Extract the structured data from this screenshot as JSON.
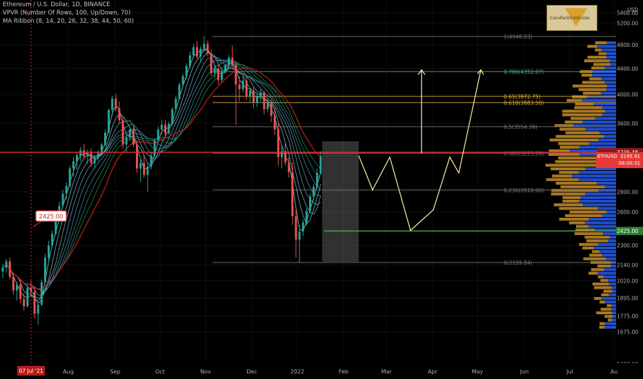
{
  "header": {
    "symbol_line": "Ethereum / U.S. Dollar, 1D, BINANCE",
    "indicator1": "VPVR (Number Of Rows, 100, Up/Down, 70)",
    "indicator2": "MA Ribbon (8, 14, 20, 26, 32, 38, 44, 50, 60)"
  },
  "logo": {
    "text": "CandleStickGuide"
  },
  "chart_data": {
    "type": "candlestick",
    "symbol": "ETHUSD",
    "price_axis": {
      "unit": "USD",
      "ticks": [
        5400,
        5200,
        4800,
        4400,
        4000,
        3600,
        3200,
        2800,
        2600,
        2300,
        2140,
        2020,
        1895,
        1775,
        1675,
        1487
      ],
      "tick_labels": [
        "5400.00",
        "5200.00",
        "4800.00",
        "4400.00",
        "4000.00",
        "3600.00",
        "3200.00",
        "2800.00",
        "2600.00",
        "2300.00",
        "2140.00",
        "2020.00",
        "1895.00",
        "1775.00",
        "1675.00",
        "1487.00"
      ],
      "scale": "log"
    },
    "time_axis": {
      "labels": [
        "Aug",
        "Sep",
        "Oct",
        "Nov",
        "Dec",
        "2022",
        "Feb",
        "Mar",
        "Apr",
        "May",
        "Jun",
        "Jul",
        "Au"
      ],
      "cursor_label": "07 Jul '21"
    },
    "fib_levels": [
      {
        "ratio": "1",
        "price": 4948.93,
        "label": "1(4948.93)",
        "color": "#787878"
      },
      {
        "ratio": "0.786",
        "price": 4352.07,
        "label": "0.786(4352.07)",
        "color": "#4caf94"
      },
      {
        "ratio": "0.65",
        "price": 3972.75,
        "label": "0.65(3972.75)",
        "color": "#e0b040"
      },
      {
        "ratio": "0.618",
        "price": 3883.5,
        "label": "0.618(3883.50)",
        "color": "#e0b040"
      },
      {
        "ratio": "0.5",
        "price": 3554.39,
        "label": "0.5(3554.39)",
        "color": "#787878"
      },
      {
        "ratio": "0.382",
        "price": 3225.28,
        "label": "0.382(3225.28)",
        "color": "#787878"
      },
      {
        "ratio": "0.236",
        "price": 2818.06,
        "label": "0.236(2818.06)",
        "color": "#787878"
      },
      {
        "ratio": "0",
        "price": 2159.84,
        "label": "0(2159.84)",
        "color": "#787878"
      }
    ],
    "horizontal_lines": [
      {
        "price": 3236.48,
        "label": "3236.48",
        "color": "#d32f2f"
      },
      {
        "price": 2425.0,
        "label": "2425.00",
        "color": "#4caf50"
      }
    ],
    "price_tags": [
      {
        "price": 3236.48,
        "label": "3236.48",
        "color": "#8b1a1a"
      },
      {
        "price": 3195.91,
        "label": "ETHUSD",
        "label2": "3195.91",
        "label3": "08:00:31",
        "color": "#e53935"
      },
      {
        "price": 2425.0,
        "label": "2425.00",
        "color": "#2e7d32"
      }
    ],
    "callout": {
      "label": "2425.00",
      "price": 2425.0
    },
    "projection_path": [
      3195.91,
      2820,
      3180,
      2430,
      2620,
      3180,
      3000,
      4380
    ],
    "projection_arrows": [
      {
        "from_price": 3225,
        "to_price": 4380
      }
    ],
    "candles": [
      [
        2090,
        2150,
        2040,
        2120
      ],
      [
        2120,
        2190,
        2080,
        2170
      ],
      [
        2170,
        2200,
        2030,
        2050
      ],
      [
        2050,
        2080,
        1920,
        1950
      ],
      [
        1950,
        2010,
        1880,
        1990
      ],
      [
        1990,
        2030,
        1860,
        1890
      ],
      [
        1890,
        1930,
        1810,
        1840
      ],
      [
        1840,
        1990,
        1830,
        1970
      ],
      [
        1970,
        2020,
        1900,
        1940
      ],
      [
        1940,
        1980,
        1760,
        1790
      ],
      [
        1790,
        1860,
        1720,
        1850
      ],
      [
        1850,
        2030,
        1840,
        2010
      ],
      [
        2010,
        2230,
        2000,
        2200
      ],
      [
        2200,
        2340,
        2170,
        2300
      ],
      [
        2300,
        2430,
        2280,
        2400
      ],
      [
        2400,
        2550,
        2390,
        2530
      ],
      [
        2530,
        2700,
        2510,
        2660
      ],
      [
        2660,
        2820,
        2640,
        2780
      ],
      [
        2780,
        2900,
        2720,
        2860
      ],
      [
        2860,
        3080,
        2840,
        3050
      ],
      [
        3050,
        3180,
        2960,
        3130
      ],
      [
        3130,
        3240,
        3040,
        3200
      ],
      [
        3200,
        3300,
        3130,
        3260
      ],
      [
        3260,
        3340,
        3160,
        3190
      ],
      [
        3190,
        3270,
        3100,
        3230
      ],
      [
        3230,
        3280,
        3070,
        3110
      ],
      [
        3110,
        3190,
        3050,
        3170
      ],
      [
        3170,
        3260,
        3130,
        3230
      ],
      [
        3230,
        3350,
        3200,
        3330
      ],
      [
        3330,
        3520,
        3310,
        3480
      ],
      [
        3480,
        3800,
        3460,
        3780
      ],
      [
        3780,
        3980,
        3700,
        3940
      ],
      [
        3940,
        4010,
        3760,
        3800
      ],
      [
        3800,
        3900,
        3600,
        3640
      ],
      [
        3640,
        3700,
        3280,
        3330
      ],
      [
        3330,
        3460,
        3240,
        3420
      ],
      [
        3420,
        3560,
        3380,
        3520
      ],
      [
        3520,
        3560,
        3300,
        3330
      ],
      [
        3330,
        3380,
        3000,
        3050
      ],
      [
        3050,
        3150,
        2900,
        3110
      ],
      [
        3110,
        3200,
        2950,
        2980
      ],
      [
        2980,
        3100,
        2800,
        3070
      ],
      [
        3070,
        3240,
        3040,
        3200
      ],
      [
        3200,
        3400,
        3180,
        3380
      ],
      [
        3380,
        3560,
        3360,
        3520
      ],
      [
        3520,
        3650,
        3450,
        3580
      ],
      [
        3580,
        3640,
        3420,
        3470
      ],
      [
        3470,
        3620,
        3450,
        3590
      ],
      [
        3590,
        3820,
        3570,
        3790
      ],
      [
        3790,
        3980,
        3760,
        3940
      ],
      [
        3940,
        4180,
        3920,
        4150
      ],
      [
        4150,
        4320,
        4100,
        4280
      ],
      [
        4280,
        4480,
        4230,
        4440
      ],
      [
        4440,
        4680,
        4410,
        4620
      ],
      [
        4620,
        4820,
        4580,
        4760
      ],
      [
        4760,
        4870,
        4560,
        4600
      ],
      [
        4600,
        4780,
        4500,
        4730
      ],
      [
        4730,
        4950,
        4680,
        4820
      ],
      [
        4820,
        4880,
        4600,
        4650
      ],
      [
        4650,
        4720,
        4280,
        4330
      ],
      [
        4330,
        4480,
        4250,
        4400
      ],
      [
        4400,
        4460,
        4150,
        4220
      ],
      [
        4220,
        4400,
        4180,
        4350
      ],
      [
        4350,
        4480,
        4320,
        4450
      ],
      [
        4450,
        4620,
        4430,
        4580
      ],
      [
        4580,
        4790,
        4400,
        4450
      ],
      [
        4450,
        4520,
        3580,
        4150
      ],
      [
        4150,
        4280,
        3900,
        4080
      ],
      [
        4080,
        4300,
        4030,
        4210
      ],
      [
        4210,
        4260,
        3920,
        3980
      ],
      [
        3980,
        4100,
        3880,
        4060
      ],
      [
        4060,
        4120,
        3800,
        3880
      ],
      [
        3880,
        4020,
        3820,
        3970
      ],
      [
        3970,
        4080,
        3900,
        4030
      ],
      [
        4030,
        4060,
        3720,
        3790
      ],
      [
        3790,
        3940,
        3750,
        3880
      ],
      [
        3880,
        3920,
        3620,
        3700
      ],
      [
        3700,
        3800,
        3450,
        3520
      ],
      [
        3520,
        3620,
        3080,
        3180
      ],
      [
        3180,
        3320,
        3050,
        3250
      ],
      [
        3250,
        3350,
        3080,
        3120
      ],
      [
        3120,
        3180,
        2950,
        3010
      ],
      [
        3010,
        3120,
        2480,
        2560
      ],
      [
        2560,
        2620,
        2200,
        2350
      ],
      [
        2350,
        2480,
        2160,
        2420
      ],
      [
        2420,
        2530,
        2380,
        2500
      ],
      [
        2500,
        2640,
        2470,
        2610
      ],
      [
        2610,
        2780,
        2590,
        2750
      ],
      [
        2750,
        2880,
        2720,
        2850
      ],
      [
        2850,
        3050,
        2830,
        3000
      ],
      [
        3000,
        3250,
        2980,
        3190
      ]
    ]
  },
  "colors": {
    "up": "#26a69a",
    "down": "#ef5350",
    "background": "#000000",
    "vp_up": "#2962ff",
    "vp_down": "#e0a030",
    "projection": "#f0e6a0"
  }
}
